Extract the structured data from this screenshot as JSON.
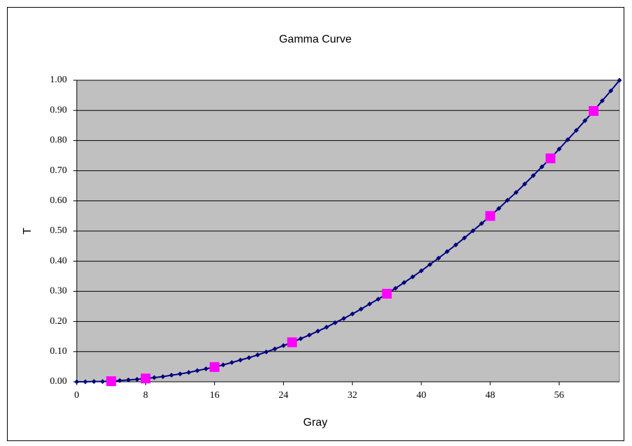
{
  "chart_data": {
    "type": "line",
    "title": "Gamma Curve",
    "x_label": "Gray",
    "y_label": "T",
    "xlim": [
      0,
      63
    ],
    "ylim": [
      0,
      1
    ],
    "xticks": [
      0,
      8,
      16,
      24,
      32,
      40,
      48,
      56
    ],
    "yticks": [
      {
        "value": 0,
        "label": "0.00"
      },
      {
        "value": 0.1,
        "label": "0.10"
      },
      {
        "value": 0.2,
        "label": "0.20"
      },
      {
        "value": 0.3,
        "label": "0.30"
      },
      {
        "value": 0.4,
        "label": "0.40"
      },
      {
        "value": 0.5,
        "label": "0.50"
      },
      {
        "value": 0.6,
        "label": "0.60"
      },
      {
        "value": 0.7,
        "label": "0.70"
      },
      {
        "value": 0.8,
        "label": "0.80"
      },
      {
        "value": 0.9,
        "label": "0.90"
      },
      {
        "value": 1,
        "label": "1.00"
      }
    ],
    "grid": true,
    "plot_background": "#c0c0c0",
    "series": [
      {
        "color": "#000080",
        "marker": "diamond",
        "line": true,
        "x": [
          0,
          1,
          2,
          3,
          4,
          5,
          6,
          7,
          8,
          9,
          10,
          11,
          12,
          13,
          14,
          15,
          16,
          17,
          18,
          19,
          20,
          21,
          22,
          23,
          24,
          25,
          26,
          27,
          28,
          29,
          30,
          31,
          32,
          33,
          34,
          35,
          36,
          37,
          38,
          39,
          40,
          41,
          42,
          43,
          44,
          45,
          46,
          47,
          48,
          49,
          50,
          51,
          52,
          53,
          54,
          55,
          56,
          57,
          58,
          59,
          60,
          61,
          62,
          63
        ],
        "values": [
          0,
          0.0,
          0.001,
          0.001,
          0.002,
          0.004,
          0.006,
          0.008,
          0.011,
          0.014,
          0.017,
          0.022,
          0.026,
          0.031,
          0.037,
          0.043,
          0.049,
          0.056,
          0.064,
          0.072,
          0.08,
          0.089,
          0.099,
          0.109,
          0.12,
          0.131,
          0.143,
          0.155,
          0.168,
          0.181,
          0.196,
          0.21,
          0.225,
          0.241,
          0.258,
          0.274,
          0.292,
          0.31,
          0.329,
          0.348,
          0.368,
          0.389,
          0.41,
          0.432,
          0.454,
          0.477,
          0.501,
          0.525,
          0.55,
          0.575,
          0.602,
          0.628,
          0.656,
          0.684,
          0.713,
          0.741,
          0.772,
          0.803,
          0.834,
          0.866,
          0.898,
          0.932,
          0.965,
          1
        ]
      },
      {
        "color": "#ff00ff",
        "marker": "square",
        "line": false,
        "x": [
          4,
          8,
          16,
          25,
          36,
          48,
          55,
          60
        ],
        "values": [
          0.002,
          0.011,
          0.049,
          0.131,
          0.292,
          0.55,
          0.741,
          0.898
        ]
      }
    ]
  }
}
